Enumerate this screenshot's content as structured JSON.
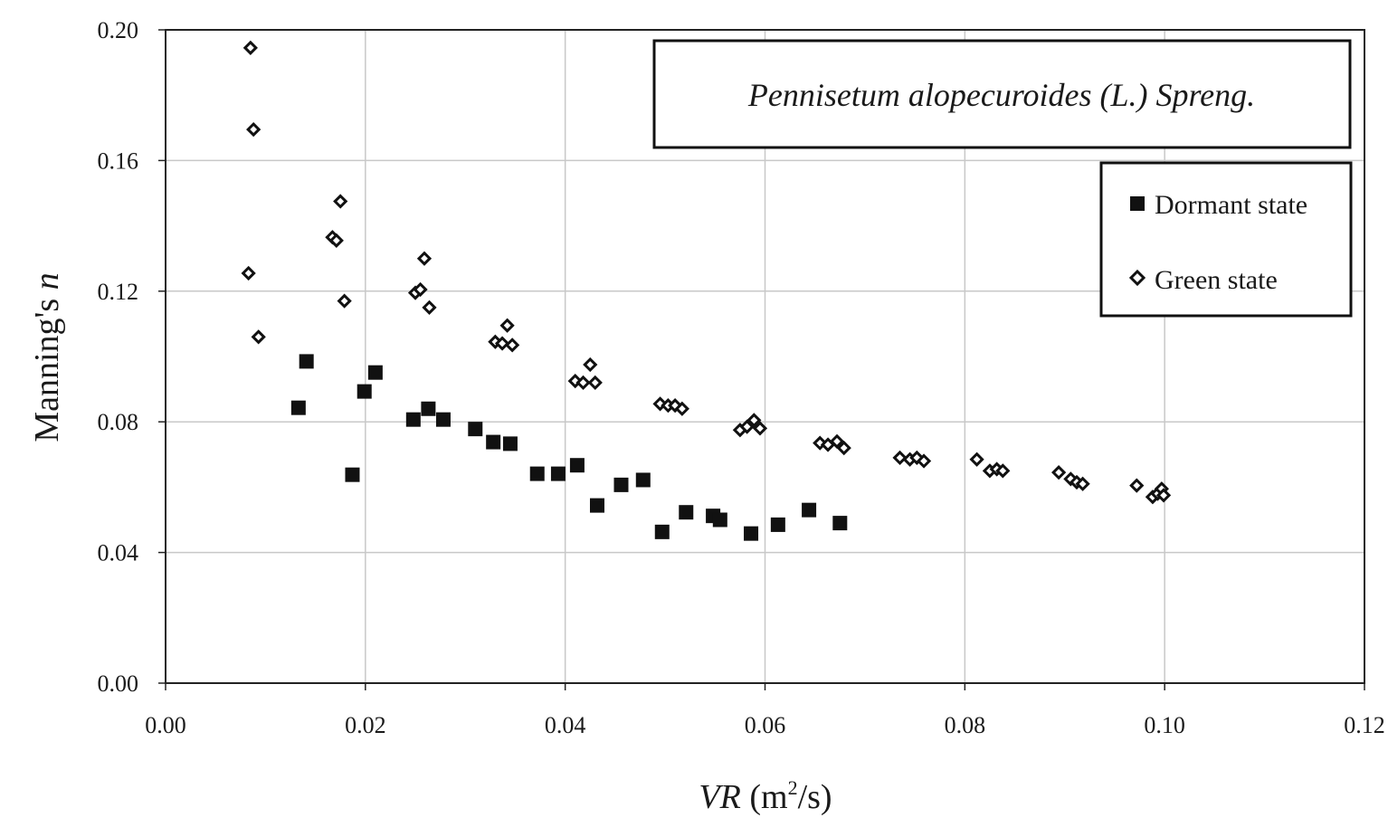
{
  "chart_data": {
    "type": "scatter",
    "title": "Pennisetum alopecuroides (L.) Spreng.",
    "xlabel": {
      "italic": "VR",
      "unit_open": " (m",
      "unit_sup": "2",
      "unit_close": "/s)"
    },
    "ylabel": {
      "plain": "Manning's ",
      "italic": "n"
    },
    "xlim": [
      0,
      0.12
    ],
    "ylim": [
      0,
      0.2
    ],
    "x_ticks": [
      "0.00",
      "0.02",
      "0.04",
      "0.06",
      "0.08",
      "0.10",
      "0.12"
    ],
    "y_ticks": [
      "0.00",
      "0.04",
      "0.08",
      "0.12",
      "0.16",
      "0.20"
    ],
    "grid": true,
    "legend_position": "upper-right",
    "series": [
      {
        "name": "Dormant state",
        "marker": "square",
        "color": "#111111",
        "points": [
          [
            0.0133,
            0.0843
          ],
          [
            0.0141,
            0.0985
          ],
          [
            0.0187,
            0.0638
          ],
          [
            0.0199,
            0.0893
          ],
          [
            0.021,
            0.0951
          ],
          [
            0.0248,
            0.0807
          ],
          [
            0.0263,
            0.084
          ],
          [
            0.0278,
            0.0807
          ],
          [
            0.031,
            0.0778
          ],
          [
            0.0328,
            0.0738
          ],
          [
            0.0345,
            0.0733
          ],
          [
            0.0372,
            0.0641
          ],
          [
            0.0393,
            0.0641
          ],
          [
            0.0412,
            0.0667
          ],
          [
            0.0432,
            0.0544
          ],
          [
            0.0456,
            0.0607
          ],
          [
            0.0478,
            0.0622
          ],
          [
            0.0497,
            0.0463
          ],
          [
            0.0521,
            0.0523
          ],
          [
            0.0548,
            0.0512
          ],
          [
            0.0555,
            0.05
          ],
          [
            0.0586,
            0.0458
          ],
          [
            0.0613,
            0.0485
          ],
          [
            0.0644,
            0.053
          ],
          [
            0.0675,
            0.049
          ]
        ]
      },
      {
        "name": "Green state",
        "marker": "diamond",
        "color": "#111111",
        "points": [
          [
            0.0085,
            0.1945
          ],
          [
            0.0088,
            0.1695
          ],
          [
            0.0083,
            0.1255
          ],
          [
            0.0093,
            0.106
          ],
          [
            0.0175,
            0.1475
          ],
          [
            0.0167,
            0.1365
          ],
          [
            0.0171,
            0.1355
          ],
          [
            0.0179,
            0.117
          ],
          [
            0.025,
            0.1195
          ],
          [
            0.0255,
            0.1205
          ],
          [
            0.0259,
            0.13
          ],
          [
            0.0264,
            0.115
          ],
          [
            0.033,
            0.1045
          ],
          [
            0.0337,
            0.104
          ],
          [
            0.0342,
            0.1095
          ],
          [
            0.0347,
            0.1035
          ],
          [
            0.041,
            0.0925
          ],
          [
            0.0418,
            0.092
          ],
          [
            0.0425,
            0.0975
          ],
          [
            0.043,
            0.092
          ],
          [
            0.0495,
            0.0855
          ],
          [
            0.0503,
            0.085
          ],
          [
            0.051,
            0.085
          ],
          [
            0.0517,
            0.084
          ],
          [
            0.0575,
            0.0775
          ],
          [
            0.0582,
            0.0785
          ],
          [
            0.0589,
            0.0805
          ],
          [
            0.0595,
            0.078
          ],
          [
            0.0655,
            0.0735
          ],
          [
            0.0663,
            0.073
          ],
          [
            0.0672,
            0.074
          ],
          [
            0.0679,
            0.072
          ],
          [
            0.0735,
            0.069
          ],
          [
            0.0745,
            0.0685
          ],
          [
            0.0752,
            0.069
          ],
          [
            0.0759,
            0.068
          ],
          [
            0.0812,
            0.0685
          ],
          [
            0.0825,
            0.065
          ],
          [
            0.0832,
            0.0655
          ],
          [
            0.0838,
            0.065
          ],
          [
            0.0894,
            0.0645
          ],
          [
            0.0906,
            0.0625
          ],
          [
            0.0912,
            0.0615
          ],
          [
            0.0918,
            0.061
          ],
          [
            0.0972,
            0.0605
          ],
          [
            0.0988,
            0.057
          ],
          [
            0.0993,
            0.058
          ],
          [
            0.0997,
            0.0595
          ],
          [
            0.0999,
            0.0575
          ]
        ]
      }
    ]
  }
}
